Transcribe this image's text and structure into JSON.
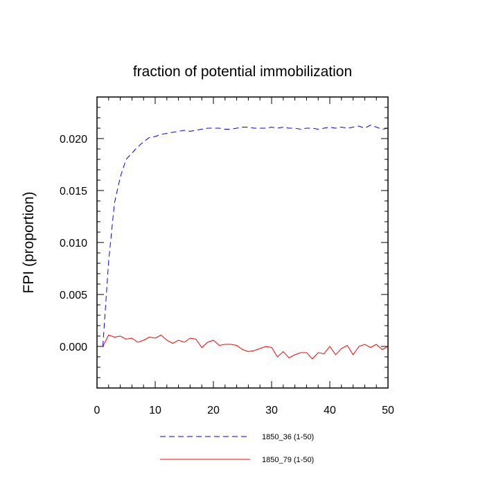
{
  "chart_data": {
    "type": "line",
    "title": "fraction of potential immobilization",
    "xlabel": "",
    "ylabel": "FPI  (proportion)",
    "xlim": [
      0,
      50
    ],
    "ylim": [
      -0.004,
      0.024
    ],
    "x_ticks": [
      0,
      10,
      20,
      30,
      40,
      50
    ],
    "x_tick_labels": [
      "0",
      "10",
      "20",
      "30",
      "40",
      "50"
    ],
    "y_ticks": [
      0.0,
      0.005,
      0.01,
      0.015,
      0.02
    ],
    "y_tick_labels": [
      "0.000",
      "0.005",
      "0.010",
      "0.015",
      "0.020"
    ],
    "grid": false,
    "legend_position": "bottom",
    "x": [
      1,
      2,
      3,
      4,
      5,
      6,
      7,
      8,
      9,
      10,
      11,
      12,
      13,
      14,
      15,
      16,
      17,
      18,
      19,
      20,
      21,
      22,
      23,
      24,
      25,
      26,
      27,
      28,
      29,
      30,
      31,
      32,
      33,
      34,
      35,
      36,
      37,
      38,
      39,
      40,
      41,
      42,
      43,
      44,
      45,
      46,
      47,
      48,
      49,
      50
    ],
    "series": [
      {
        "name": "1850_36 (1-50)",
        "color": "#0000ff",
        "style": "dashed",
        "values": [
          0.0,
          0.0082,
          0.0138,
          0.0163,
          0.018,
          0.0186,
          0.0192,
          0.0197,
          0.0201,
          0.0202,
          0.0204,
          0.0205,
          0.0206,
          0.0207,
          0.0208,
          0.0207,
          0.0208,
          0.0209,
          0.021,
          0.021,
          0.021,
          0.0209,
          0.0209,
          0.021,
          0.0211,
          0.0211,
          0.021,
          0.021,
          0.021,
          0.0211,
          0.021,
          0.0211,
          0.021,
          0.021,
          0.0209,
          0.021,
          0.021,
          0.0209,
          0.021,
          0.0211,
          0.021,
          0.0211,
          0.021,
          0.0211,
          0.0212,
          0.021,
          0.0213,
          0.0211,
          0.0209,
          0.021
        ]
      },
      {
        "name": "1850_79 (1-50)",
        "color": "#ff0000",
        "style": "solid",
        "values": [
          0.0,
          0.0011,
          0.0009,
          0.001,
          0.0007,
          0.0008,
          0.0004,
          0.0006,
          0.0009,
          0.0008,
          0.0011,
          0.0006,
          0.0003,
          0.0006,
          0.0004,
          0.0008,
          0.0007,
          -0.0001,
          0.0004,
          0.0006,
          0.0001,
          0.0002,
          0.0002,
          0.0001,
          -0.0003,
          -0.0005,
          -0.0004,
          -0.0002,
          0.0,
          -0.0001,
          -0.001,
          -0.0005,
          -0.0011,
          -0.0008,
          -0.0006,
          -0.0006,
          -0.0012,
          -0.0006,
          -0.0007,
          0.0,
          -0.0008,
          -0.0002,
          0.0001,
          -0.0008,
          0.0,
          0.0002,
          -0.0001,
          0.0002,
          -0.0003,
          0.0
        ]
      }
    ]
  }
}
